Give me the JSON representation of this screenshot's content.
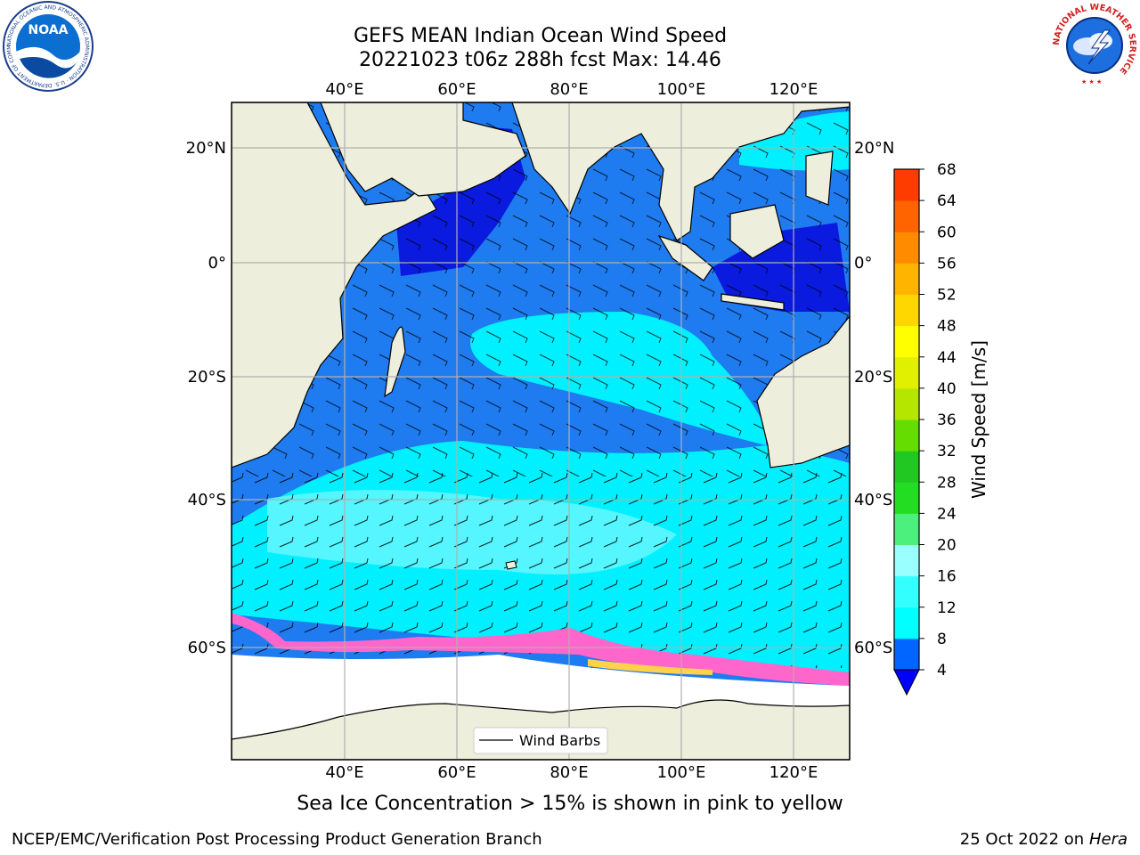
{
  "header": {
    "title_line1": "GEFS MEAN Indian Ocean Wind Speed",
    "title_line2": "20221023 t06z 288h fcst   Max: 14.46"
  },
  "logos": {
    "noaa_text": "NOAA",
    "noaa_ring_text": "NATIONAL OCEANIC AND ATMOSPHERIC ADMINISTRATION · U.S. DEPARTMENT OF COMMERCE",
    "nws_ring_text": "NATIONAL WEATHER SERVICE"
  },
  "map": {
    "top_lon_labels": [
      "40°E",
      "60°E",
      "80°E",
      "100°E",
      "120°E"
    ],
    "bottom_lon_labels": [
      "40°E",
      "60°E",
      "80°E",
      "100°E",
      "120°E"
    ],
    "left_lat_labels": [
      "20°N",
      "0°",
      "20°S",
      "40°S",
      "60°S"
    ],
    "right_lat_labels": [
      "20°N",
      "0°",
      "20°S",
      "40°S",
      "60°S"
    ],
    "legend_label": "Wind Barbs",
    "land_color": "#eeeedc",
    "grid_color": "#b0b0b0"
  },
  "colorbar": {
    "label": "Wind Speed [m/s]",
    "ticks": [
      "4",
      "8",
      "12",
      "16",
      "20",
      "24",
      "28",
      "32",
      "36",
      "40",
      "44",
      "48",
      "52",
      "56",
      "60",
      "64",
      "68"
    ],
    "colors": [
      "#0066ff",
      "#00ffff",
      "#33ffff",
      "#99ffff",
      "#4cf07c",
      "#22dd22",
      "#22c822",
      "#66dd00",
      "#b4e600",
      "#e1f000",
      "#ffff00",
      "#ffd700",
      "#ffb400",
      "#ff8c00",
      "#ff6400",
      "#ff3c00"
    ],
    "under_color": "#0000ff"
  },
  "notes": {
    "sea_ice": "Sea Ice Concentration > 15% is shown in pink to yellow"
  },
  "footer": {
    "left": "NCEP/EMC/Verification Post Processing Product Generation Branch",
    "date": "25 Oct 2022 on ",
    "host": "Hera"
  }
}
